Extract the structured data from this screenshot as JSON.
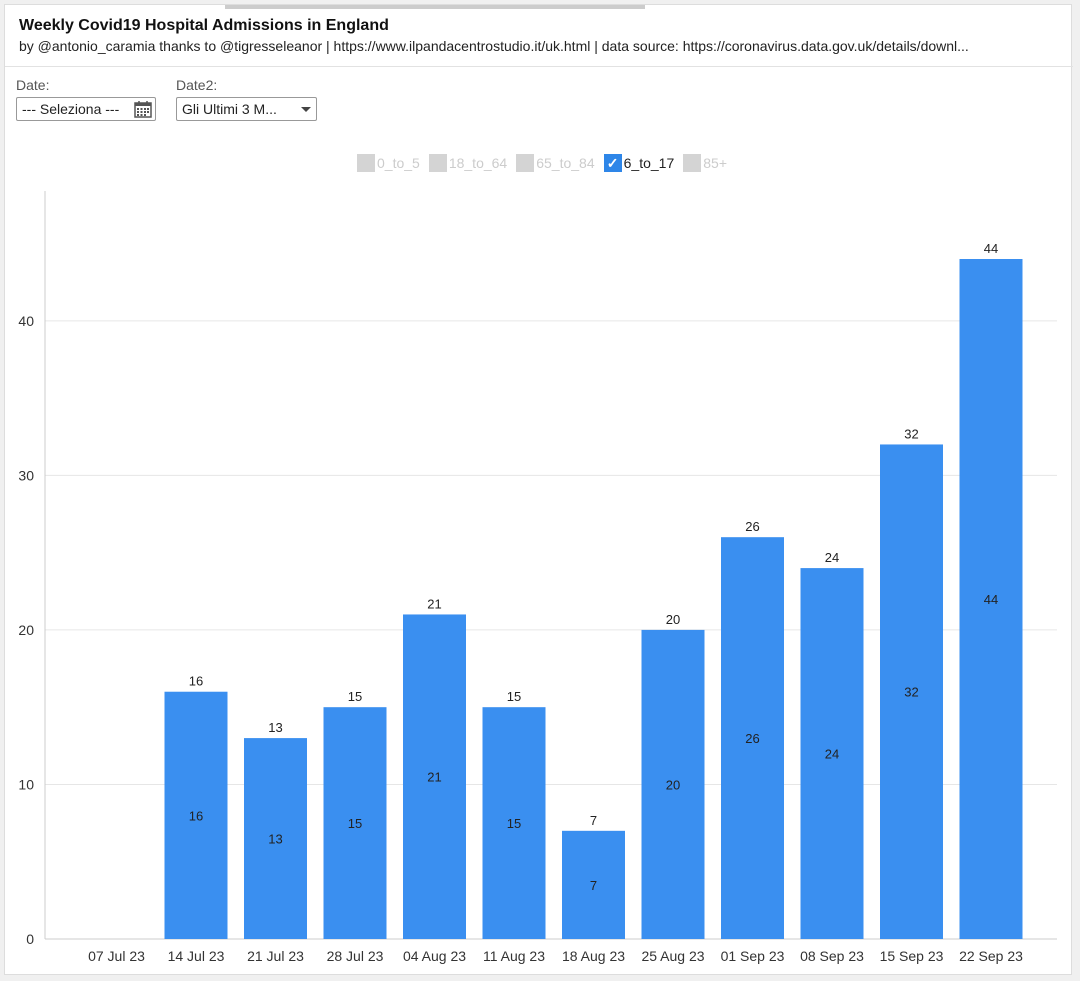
{
  "header": {
    "title": "Weekly Covid19 Hospital Admissions in England",
    "subtitle": "by @antonio_caramia thanks to @tigresseleanor | https://www.ilpandacentrostudio.it/uk.html | data source: https://coronavirus.data.gov.uk/details/downl..."
  },
  "controls": {
    "date_label": "Date:",
    "date_value": "--- Seleziona ---",
    "date2_label": "Date2:",
    "date2_value": "Gli Ultimi 3 M..."
  },
  "legend": [
    {
      "label": "0_to_5",
      "checked": false
    },
    {
      "label": "18_to_64",
      "checked": false
    },
    {
      "label": "65_to_84",
      "checked": false
    },
    {
      "label": "6_to_17",
      "checked": true
    },
    {
      "label": "85+",
      "checked": false
    }
  ],
  "colors": {
    "bar": "#3a8ff0",
    "checkbox_on": "#2e86e8",
    "checkbox_off": "#d4d4d4"
  },
  "chart_data": {
    "type": "bar",
    "categories": [
      "07 Jul 23",
      "14 Jul 23",
      "21 Jul 23",
      "28 Jul 23",
      "04 Aug 23",
      "11 Aug 23",
      "18 Aug 23",
      "25 Aug 23",
      "01 Sep 23",
      "08 Sep 23",
      "15 Sep 23",
      "22 Sep 23"
    ],
    "series": [
      {
        "name": "6_to_17",
        "values": [
          0,
          16,
          13,
          15,
          21,
          15,
          7,
          20,
          26,
          24,
          32,
          44
        ]
      }
    ],
    "yticks": [
      0,
      10,
      20,
      30,
      40
    ],
    "ylim": [
      0,
      48.4
    ],
    "grid": true,
    "legend_position": "top",
    "data_labels": "top-and-center"
  }
}
